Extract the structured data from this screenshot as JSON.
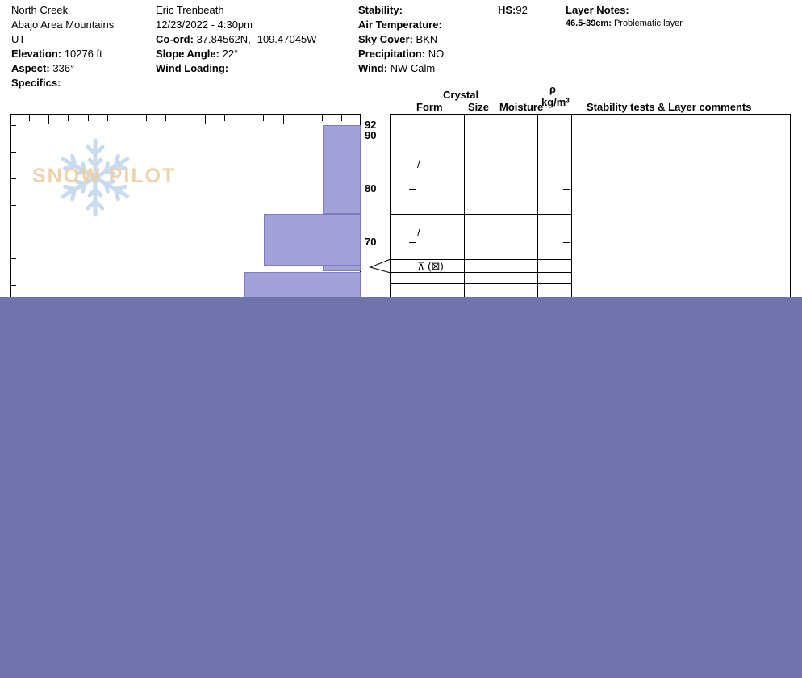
{
  "header": {
    "location": {
      "name": "North Creek",
      "area": "Abajo Area Mountains",
      "state": "UT",
      "elevation_label": "Elevation:",
      "elevation_value": "10276 ft",
      "aspect_label": "Aspect:",
      "aspect_value": "336°",
      "specifics_label": "Specifics:"
    },
    "observation": {
      "observer": "Eric Trenbeath",
      "datetime": "12/23/2022 - 4:30pm",
      "coord_label": "Co-ord:",
      "coord_value": "37.84562N, -109.47045W",
      "slope_angle_label": "Slope Angle:",
      "slope_angle_value": "22°",
      "wind_loading_label": "Wind Loading:"
    },
    "conditions": {
      "stability_label": "Stability:",
      "air_temperature_label": "Air Temperature:",
      "sky_cover_label": "Sky Cover:",
      "sky_cover_value": "BKN",
      "precipitation_label": "Precipitation:",
      "precipitation_value": "NO",
      "wind_label": "Wind:",
      "wind_value": "NW Calm"
    },
    "hs_label": "HS:",
    "hs_value": "92",
    "layer_notes": {
      "title": "Layer Notes:",
      "note_depth": "46.5-39cm:",
      "note_text": "Problematic layer"
    }
  },
  "profile_table": {
    "crystal_header": "Crystal",
    "form_header": "Form",
    "size_header": "Size",
    "moisture_header": "Moisture",
    "density_symbol": "ρ",
    "density_units": "kg/m³",
    "comments_header": "Stability tests & Layer comments"
  },
  "watermark": {
    "text": "SNOW PILOT",
    "snowflake_icon": "snowflake"
  },
  "chart_data": {
    "type": "bar",
    "title": "Snow pit hardness profile (depth vs hand hardness)",
    "hs_cm": 92,
    "depth_axis": {
      "unit": "cm",
      "surface_cm": 92,
      "visible_labels": [
        92,
        90,
        80,
        70
      ],
      "side_tick_depths": [
        90,
        80,
        70
      ]
    },
    "layers": [
      {
        "top_cm": 92,
        "bottom_cm": 75.3,
        "hardness": "F",
        "width_frac": 0.108
      },
      {
        "top_cm": 75.3,
        "bottom_cm": 65.6,
        "hardness": "4F",
        "width_frac": 0.277
      },
      {
        "top_cm": 65.6,
        "bottom_cm": 64.5,
        "hardness": "F",
        "width_frac": 0.108
      },
      {
        "top_cm": 64.5,
        "bottom_cm": 58,
        "hardness": "4F",
        "width_frac": 0.332
      }
    ],
    "grain_symbols": [
      {
        "depth_cm": 84.4,
        "symbol": "/"
      },
      {
        "depth_cm": 71.5,
        "symbol": "/"
      },
      {
        "depth_cm": 65.3,
        "symbol": "⊼ (⊠)"
      }
    ],
    "table_row_boundaries_cm": [
      75.3,
      66.8,
      64.4,
      62.3
    ],
    "problem_layer_marker_cm": 65.6,
    "colors": {
      "bar_fill": "#a2a2d8",
      "bar_border": "#7b7bc0",
      "overlay": "#7173ac",
      "snowflake": "#c9dbee",
      "watermark_text": "#eccfa4"
    }
  }
}
